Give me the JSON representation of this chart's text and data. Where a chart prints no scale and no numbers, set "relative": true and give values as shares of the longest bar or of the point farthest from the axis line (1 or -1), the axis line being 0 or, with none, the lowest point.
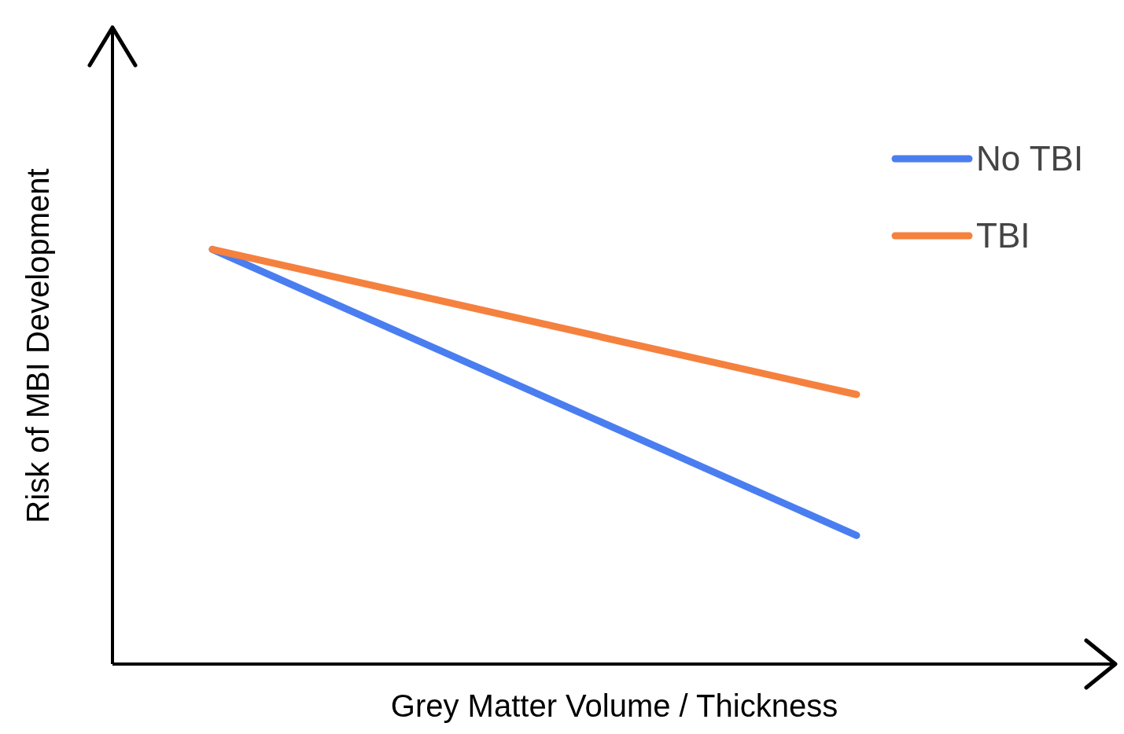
{
  "chart_data": {
    "type": "line",
    "xlabel": "Grey Matter Volume / Thickness",
    "ylabel": "Risk of MBI Development",
    "relative": true,
    "categories": [
      null,
      null
    ],
    "series": [
      {
        "name": "No TBI",
        "color": "#4a7ef0",
        "values": [
          1,
          0.31
        ]
      },
      {
        "name": "TBI",
        "color": "#f5813f",
        "values": [
          1,
          0.65
        ]
      }
    ],
    "legend": "top right",
    "grid": false,
    "marker": "none",
    "line_style": "solid"
  }
}
